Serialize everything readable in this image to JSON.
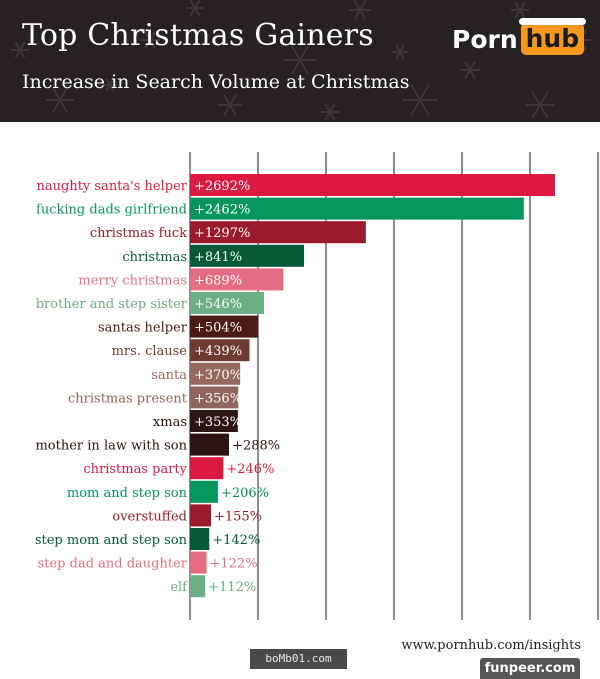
{
  "header": {
    "title": "Top Christmas Gainers",
    "subtitle": "Increase in Search Volume at Christmas",
    "logo_left": "Porn",
    "logo_right": "hub",
    "background_color": "#262222",
    "logo_accent_color": "#f7971d"
  },
  "chart_data": {
    "type": "bar",
    "orientation": "horizontal",
    "categories": [
      "naughty santa's helper",
      "fucking dads girlfriend",
      "christmas fuck",
      "christmas",
      "merry christmas",
      "brother and step sister",
      "santas helper",
      "mrs. clause",
      "santa",
      "christmas present",
      "xmas",
      "mother in law with son",
      "christmas party",
      "mom and step son",
      "overstuffed",
      "step mom and step son",
      "step dad and daughter",
      "elf"
    ],
    "values": [
      2692,
      2462,
      1297,
      841,
      689,
      546,
      504,
      439,
      370,
      356,
      353,
      288,
      246,
      206,
      155,
      142,
      122,
      112
    ],
    "value_labels": [
      "+2692%",
      "+2462%",
      "+1297%",
      "+841%",
      "+689%",
      "+546%",
      "+504%",
      "+439%",
      "+370%",
      "+356%",
      "+353%",
      "+288%",
      "+246%",
      "+206%",
      "+155%",
      "+142%",
      "+122%",
      "+112%"
    ],
    "colors": [
      "#dc1a41",
      "#06955c",
      "#9b1b2d",
      "#065a39",
      "#e56d83",
      "#6caf84",
      "#4b1a14",
      "#6e3b33",
      "#97685e",
      "#8e665e",
      "#2c1410",
      "#2c1410",
      "#dc1a41",
      "#06955c",
      "#9b1b2d",
      "#065a39",
      "#e56d83",
      "#6caf84"
    ],
    "xlim": [
      0,
      2800
    ],
    "grid": true,
    "grid_lines": 6
  },
  "footer": {
    "url": "www.pornhub.com/insights",
    "watermark_left": "boMb01.com",
    "watermark_right": "funpeer.com"
  }
}
